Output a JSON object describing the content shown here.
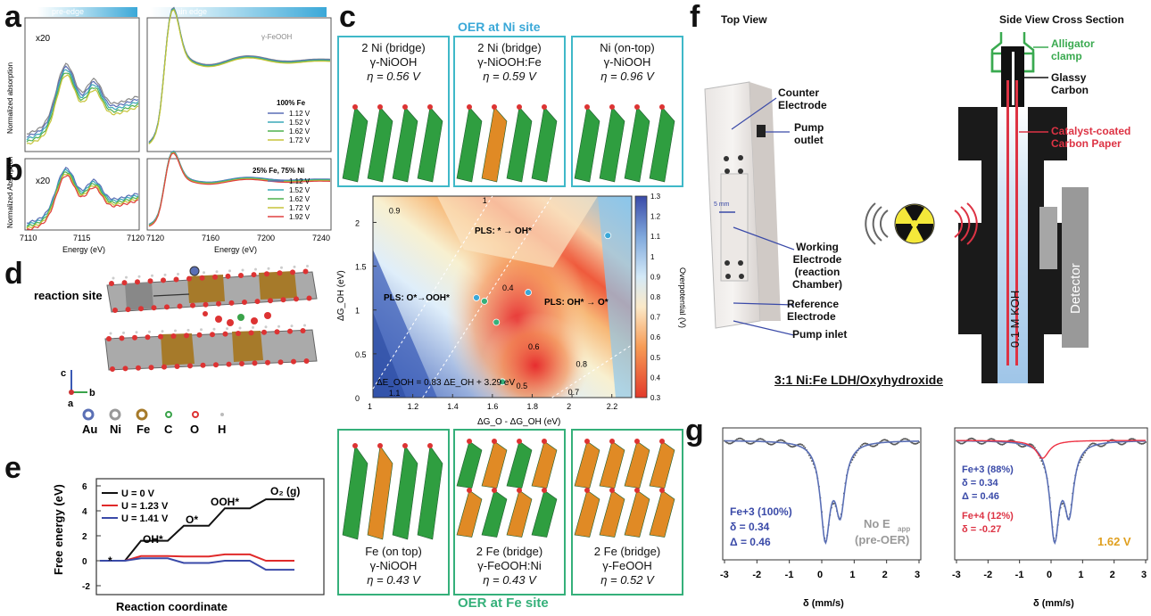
{
  "panel_labels": {
    "a": "a",
    "b": "b",
    "c": "c",
    "d": "d",
    "e": "e",
    "f": "f",
    "g": "g"
  },
  "panel_a": {
    "pre_edge": "pre-edge",
    "main_edge": "main edge",
    "x20": "x20",
    "ylabel": "Normalized absorption",
    "ref": "γ-FeOOH",
    "legend_title": "100% Fe",
    "legend": [
      "1.12 V",
      "1.52 V",
      "1.62 V",
      "1.72 V"
    ]
  },
  "panel_b": {
    "x20": "x20",
    "ylabel": "Normalized Absorption",
    "legend_title": "25% Fe, 75% Ni",
    "legend": [
      "1.12 V",
      "1.52 V",
      "1.62 V",
      "1.72 V",
      "1.92 V"
    ],
    "xticks_left": [
      "7110",
      "7115",
      "7120"
    ],
    "xticks_right": [
      "7120",
      "7160",
      "7200",
      "7240"
    ],
    "xlabel": "Energy (eV)"
  },
  "colors": {
    "c1": "#5a6fb5",
    "c2": "#3aa8b8",
    "c3": "#4fb04f",
    "c4": "#c7c43a",
    "c5": "#e04040",
    "ref": "#888888"
  },
  "panel_c": {
    "title_top": "OER at Ni site",
    "title_bottom": "OER at Fe site",
    "top_boxes": [
      {
        "l1": "2 Ni (bridge)",
        "l2": "γ-NiOOH",
        "l3": "η = 0.56 V"
      },
      {
        "l1": "2 Ni (bridge)",
        "l2": "γ-NiOOH:Fe",
        "l3": "η = 0.59 V"
      },
      {
        "l1": "Ni (on-top)",
        "l2": "γ-NiOOH",
        "l3": "η = 0.96 V"
      }
    ],
    "bottom_boxes": [
      {
        "l1": "Fe (on top)",
        "l2": "γ-NiOOH",
        "l3": "η = 0.43 V"
      },
      {
        "l1": "2 Fe (bridge)",
        "l2": "γ-FeOOH:Ni",
        "l3": "η = 0.43 V"
      },
      {
        "l1": "2 Fe (bridge)",
        "l2": "γ-FeOOH",
        "l3": "η = 0.52 V"
      }
    ],
    "heatmap": {
      "xlabel": "ΔG_O - ΔG_OH (eV)",
      "ylabel": "ΔG_OH (eV)",
      "xticks": [
        "1",
        "1.2",
        "1.4",
        "1.6",
        "1.8",
        "2",
        "2.2"
      ],
      "yticks": [
        "0",
        "0.5",
        "1",
        "1.5",
        "2"
      ],
      "cbar_ticks": [
        "0.3",
        "0.4",
        "0.5",
        "0.6",
        "0.7",
        "0.8",
        "0.9",
        "1",
        "1.1",
        "1.2",
        "1.3"
      ],
      "cbar_label": "Overpotential (V)",
      "pls1": "PLS: * → OH*",
      "pls2": "PLS: O*→OOH*",
      "pls3": "PLS: OH* → O*",
      "eq": "ΔE_OOH = 0.83 ΔE_OH + 3.29 eV",
      "contours": [
        "0.9",
        "1",
        "0.4",
        "0.6",
        "0.8",
        "0.5",
        "0.7",
        "1.1"
      ]
    }
  },
  "panel_d": {
    "reaction_site": "reaction site",
    "axes": {
      "c": "c",
      "b": "b",
      "a": "a"
    },
    "legend": [
      "Au",
      "Ni",
      "Fe",
      "C",
      "O",
      "H"
    ]
  },
  "panel_e": {
    "legend": [
      "U = 0 V",
      "U = 1.23 V",
      "U = 1.41 V"
    ],
    "ylabel": "Free energy (eV)",
    "xlabel": "Reaction coordinate",
    "yticks": [
      "6",
      "4",
      "2",
      "0",
      "-2"
    ],
    "states": [
      "*",
      "OH*",
      "O*",
      "OOH*",
      "O₂ (g)"
    ]
  },
  "panel_f": {
    "top_view": "Top View",
    "side_view": "Side View Cross Section",
    "counter": "Counter\nElectrode",
    "pump_outlet": "Pump\noutlet",
    "scale": "5 mm",
    "working": "Working\nElectrode\n(reaction\nChamber)",
    "reference": "Reference\nElectrode",
    "pump_inlet": "Pump inlet",
    "alligator": "Alligator\nclamp",
    "glassy": "Glassy\nCarbon",
    "catalyst": "Catalyst-coated\nCarbon Paper",
    "koh": "0.1 M KOH",
    "detector": "Detector",
    "caption": "3:1 Ni:Fe LDH/Oxyhydroxide"
  },
  "panel_g": {
    "left": {
      "l1": "Fe+3 (100%)",
      "l2": "δ = 0.34",
      "l3": "Δ = 0.46",
      "r1": "No E",
      "r1sub": "app",
      "r2": "(pre-OER)"
    },
    "right": {
      "l1": "Fe+3 (88%)",
      "l2": "δ = 0.34",
      "l3": "Δ = 0.46",
      "l4": "Fe+4 (12%)",
      "l5": "δ = -0.27",
      "volt": "1.62 V"
    },
    "xticks": [
      "-3",
      "-2",
      "-1",
      "0",
      "1",
      "2",
      "3"
    ],
    "xlabel": "δ (mm/s)"
  }
}
